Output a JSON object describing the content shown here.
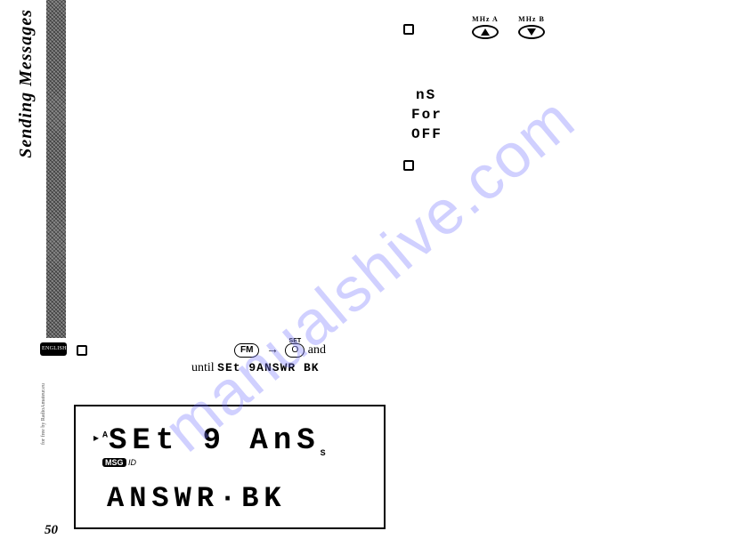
{
  "page_number": "50",
  "section_title": "Sending Messages",
  "credit": "for free by RadioAmateur.eu",
  "buttons": {
    "up": {
      "top_label": "MHz  A"
    },
    "down": {
      "top_label": "MHz  B"
    }
  },
  "seg_values": {
    "l1": "nS",
    "l2": "For",
    "l3": "OFF"
  },
  "step": {
    "fm_label": "FM",
    "set_top": "SET",
    "set_label": "O",
    "tail": "and",
    "line2_prefix": "until",
    "line2_seg": "SEt 9ANSWR BK"
  },
  "lcd": {
    "top": "SEt 9  AnS",
    "top_sup_a": "A",
    "top_sup_a2": "A",
    "top_sub_s": "S",
    "msg_badge": "MSG",
    "msg_id": "ID",
    "bottom": "ANSWR·BK"
  },
  "watermark": "manualshive.com"
}
